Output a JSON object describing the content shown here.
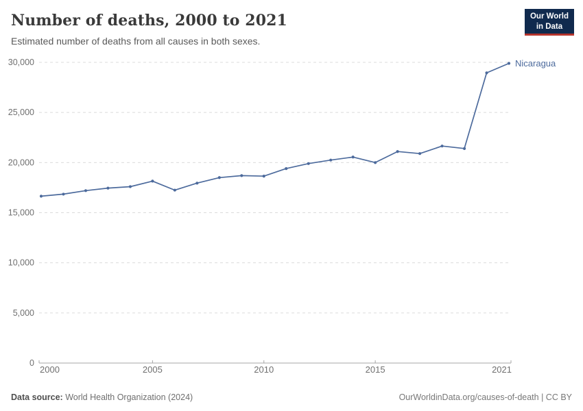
{
  "header": {
    "title": "Number of deaths, 2000 to 2021",
    "subtitle": "Estimated number of deaths from all causes in both sexes.",
    "logo": {
      "line1": "Our World",
      "line2": "in Data",
      "bg_color": "#102a4e",
      "accent_color": "#b5342c"
    }
  },
  "chart_data": {
    "type": "line",
    "title": "Number of deaths, 2000 to 2021",
    "subtitle": "Estimated number of deaths from all causes in both sexes.",
    "x": [
      2000,
      2001,
      2002,
      2003,
      2004,
      2005,
      2006,
      2007,
      2008,
      2009,
      2010,
      2011,
      2012,
      2013,
      2014,
      2015,
      2016,
      2017,
      2018,
      2019,
      2020,
      2021
    ],
    "series": [
      {
        "name": "Nicaragua",
        "color": "#4C6A9C",
        "values": [
          16650,
          16850,
          17200,
          17450,
          17600,
          18150,
          17250,
          17950,
          18500,
          18700,
          18650,
          19400,
          19900,
          20250,
          20550,
          20000,
          21100,
          20900,
          21650,
          21400,
          28950,
          29900
        ]
      }
    ],
    "ylim": [
      0,
      30000
    ],
    "yticks": [
      0,
      5000,
      10000,
      15000,
      20000,
      25000,
      30000
    ],
    "xticks": [
      2000,
      2005,
      2010,
      2015,
      2021
    ],
    "xlabel": "",
    "ylabel": "",
    "grid": "horizontal-dashed",
    "grid_color": "#dbdbdb",
    "axis_color": "#a5a5a5",
    "legend": "end-of-line-label"
  },
  "footer": {
    "source_label": "Data source:",
    "source_value": "World Health Organization (2024)",
    "link": "OurWorldinData.org/causes-of-death | CC BY"
  }
}
